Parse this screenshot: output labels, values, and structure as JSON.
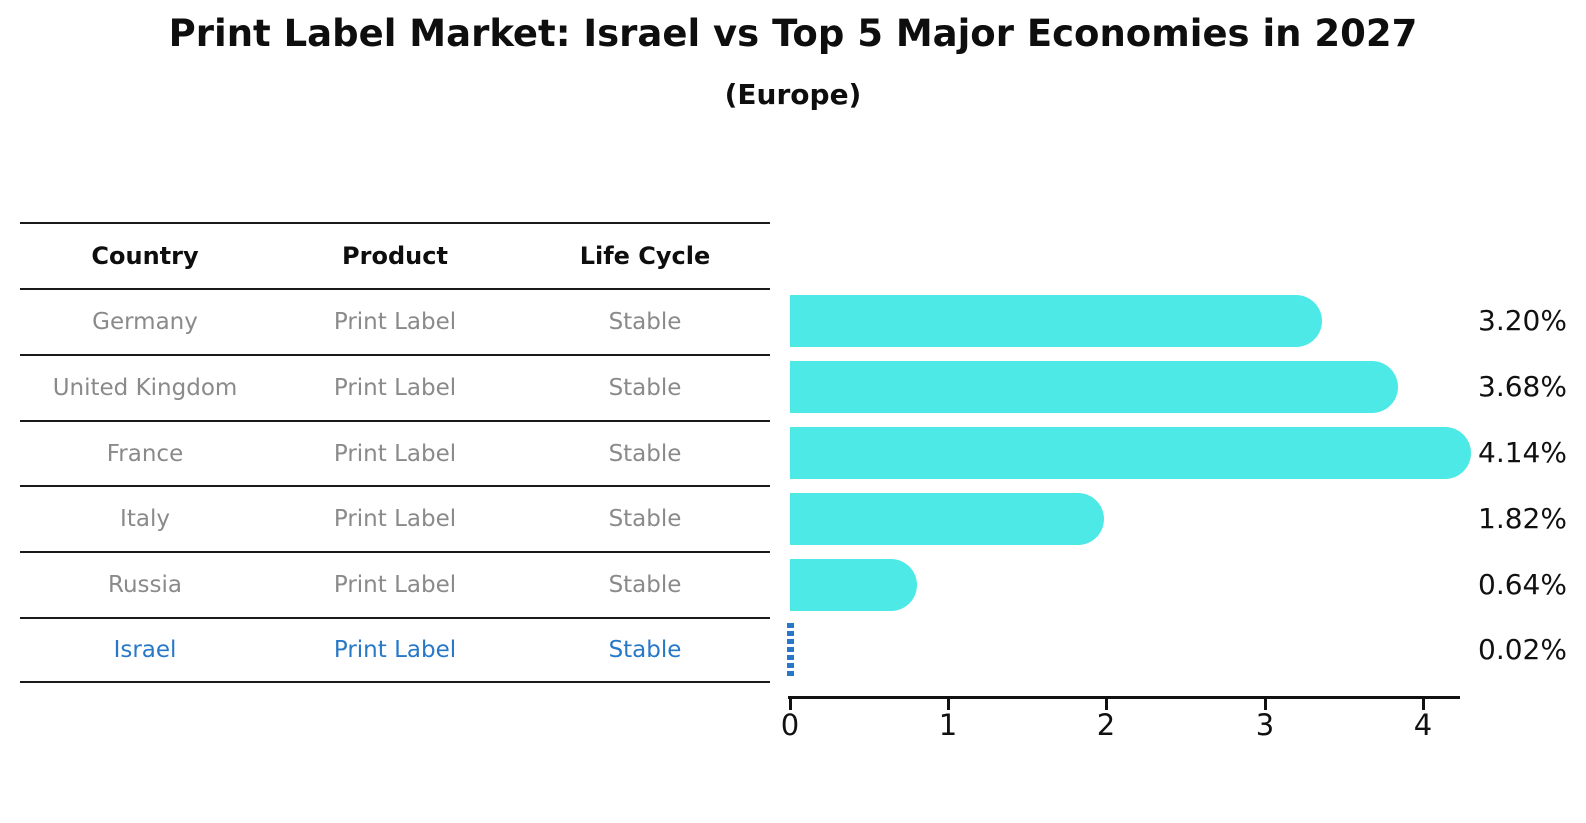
{
  "title": "Print Label Market: Israel vs Top 5 Major Economies in 2027",
  "subtitle": "(Europe)",
  "table": {
    "headers": [
      "Country",
      "Product",
      "Life Cycle"
    ],
    "rows": [
      {
        "country": "Germany",
        "product": "Print Label",
        "life_cycle": "Stable"
      },
      {
        "country": "United Kingdom",
        "product": "Print Label",
        "life_cycle": "Stable"
      },
      {
        "country": "France",
        "product": "Print Label",
        "life_cycle": "Stable"
      },
      {
        "country": "Italy",
        "product": "Print Label",
        "life_cycle": "Stable"
      },
      {
        "country": "Russia",
        "product": "Print Label",
        "life_cycle": "Stable"
      },
      {
        "country": "Israel",
        "product": "Print Label",
        "life_cycle": "Stable"
      }
    ]
  },
  "chart_data": {
    "type": "bar",
    "orientation": "horizontal",
    "title": "Print Label Market: Israel vs Top 5 Major Economies in 2027",
    "subtitle": "(Europe)",
    "categories": [
      "Germany",
      "United Kingdom",
      "France",
      "Italy",
      "Russia",
      "Israel"
    ],
    "values": [
      3.2,
      3.68,
      4.14,
      1.82,
      0.64,
      0.02
    ],
    "labels": [
      "3.20%",
      "3.68%",
      "4.14%",
      "1.82%",
      "0.64%",
      "0.02%"
    ],
    "xlim": [
      0,
      4.4
    ],
    "x_ticks": [
      "0",
      "1",
      "2",
      "3",
      "4"
    ],
    "grid": false,
    "legend": "none",
    "bar_color": "#4DE9E6",
    "highlight_color": "#2878C8",
    "highlight_index": 5
  },
  "colors": {
    "bar": "#4DE9E6",
    "highlight": "#2878C8",
    "table_text": "#8A8A8A",
    "heading_text": "#0E0E0E",
    "axis": "#111111"
  }
}
